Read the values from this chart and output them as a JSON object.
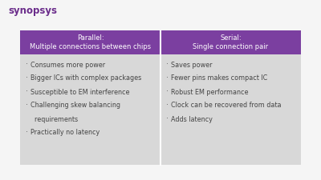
{
  "slide_bg": "#f5f5f5",
  "logo_text": "synopsys",
  "logo_color": "#6b2d8b",
  "header_bg": "#7b3fa0",
  "header_text_color": "#ffffff",
  "body_bg": "#d8d8d8",
  "body_text_color": "#444444",
  "col1_header_line1": "Parallel:",
  "col1_header_line2": "Multiple connections between chips",
  "col2_header_line1": "Serial:",
  "col2_header_line2": "Single connection pair",
  "col1_bullets": [
    "Consumes more power",
    "Bigger ICs with complex packages",
    "Susceptible to EM interference",
    "Challenging skew balancing",
    "  requirements",
    "Practically no latency"
  ],
  "col2_bullets": [
    "Saves power",
    "Fewer pins makes compact IC",
    "Robust EM performance",
    "Clock can be recovered from data",
    "Adds latency"
  ],
  "col1_bullet_flags": [
    true,
    true,
    true,
    true,
    false,
    true
  ],
  "bullet_char": "·"
}
